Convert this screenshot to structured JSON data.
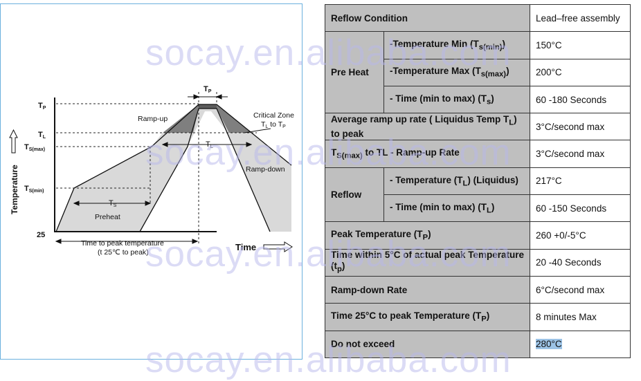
{
  "diagram": {
    "y_axis_label": "Temperature",
    "x_axis_label": "Time",
    "labels": {
      "tp": "T",
      "tp_sub": "P",
      "tl": "T",
      "tl_sub": "L",
      "tsmax": "T",
      "tsmax_sub": "S(max)",
      "tsmin": "T",
      "tsmin_sub": "S(min)",
      "t25": "25",
      "tp_interval": "T",
      "tp_interval_sub": "P",
      "tl_interval": "T",
      "tl_interval_sub": "L",
      "ts_interval": "T",
      "ts_interval_sub": "S",
      "ramp_up": "Ramp-up",
      "ramp_down": "Ramp-down",
      "preheat": "Preheat",
      "critical_zone_1": "Critical Zone",
      "critical_zone_2a": "T",
      "critical_zone_2a_sub": "L",
      "critical_zone_2b": " to T",
      "critical_zone_2b_sub": "P",
      "time_to_peak_1": "Time to peak temperature",
      "time_to_peak_2": "(t 25℃ to peak)"
    }
  },
  "table": {
    "header": {
      "label": "Reflow Condition",
      "value": "Lead–free assembly"
    },
    "preheat": {
      "label": "Pre Heat",
      "rows": [
        {
          "param": "-Temperature Min (T",
          "sub": "s(min)",
          "tail": ")",
          "value": "150°C"
        },
        {
          "param": "-Temperature Max (T",
          "sub": "s(max)",
          "tail": ")",
          "value": "200°C"
        },
        {
          "param": "- Time (min to max) (T",
          "sub": "s",
          "tail": ")",
          "value": "60 -180 Seconds"
        }
      ]
    },
    "avg_ramp": {
      "label_a": "Average ramp up rate ( Liquidus Temp T",
      "label_sub": "L",
      "label_b": ") to peak",
      "value": "3°C/second max"
    },
    "ts_to_tl": {
      "label_pre": "T",
      "label_sub": "S(max)",
      "label_post": " to TL - Ramp-up Rate",
      "value": "3°C/second max"
    },
    "reflow": {
      "label": "Reflow",
      "rows": [
        {
          "param": "- Temperature (T",
          "sub": "L",
          "tail": ") (Liquidus)",
          "value": "217°C"
        },
        {
          "param": "- Time (min to max) (T",
          "sub": "L",
          "tail": ")",
          "value": "60 -150 Seconds"
        }
      ]
    },
    "peak_temp": {
      "label": "Peak Temperature (T",
      "label_sub": "P",
      "label_tail": ")",
      "value": "260 +0/-5°C"
    },
    "time_within": {
      "label": "Time within 5°C of actual peak Temperature (t",
      "label_sub": "p",
      "label_tail": ")",
      "value": "20 -40 Seconds"
    },
    "ramp_down": {
      "label": "Ramp-down Rate",
      "value": "6°C/second max"
    },
    "time_25": {
      "label": "Time 25°C to peak Temperature (T",
      "label_sub": "P",
      "label_tail": ")",
      "value": "8 minutes Max"
    },
    "not_exceed": {
      "label": "Do not exceed",
      "value": "280°C"
    }
  },
  "watermark": "socay.en.alibaba.com",
  "colors": {
    "label_cell_bg": "#bfbfbf",
    "preheat_fill": "#d9d9d9",
    "critical_fill": "#7f7f7f",
    "highlight": "#9cc3e6",
    "frame_border": "#6ab0de"
  }
}
